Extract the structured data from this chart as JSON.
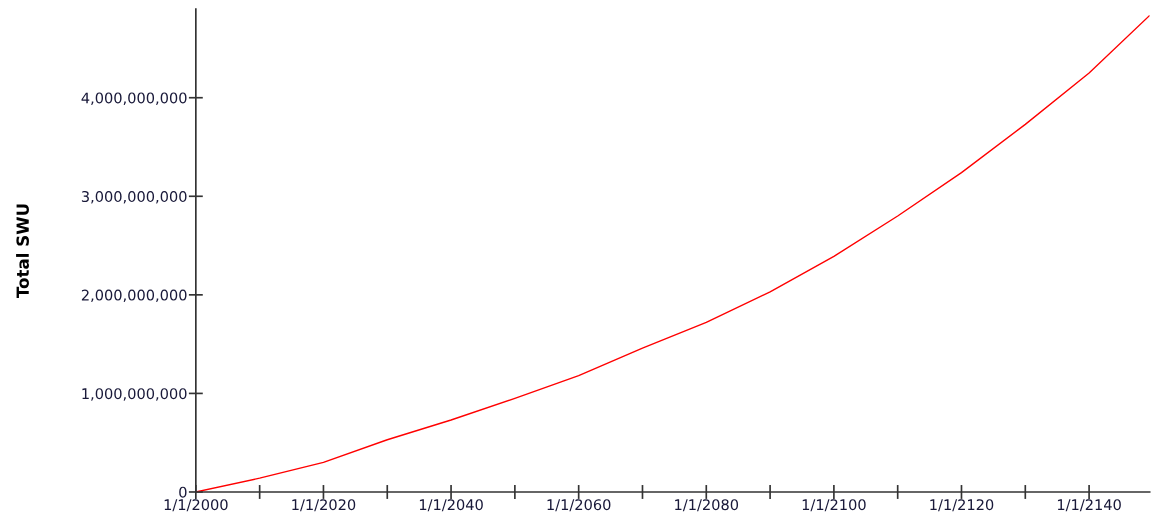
{
  "chart_data": {
    "type": "line",
    "ylabel": "Total SWU",
    "x": [
      "2000-01-01",
      "2010-01-01",
      "2020-01-01",
      "2030-01-01",
      "2040-01-01",
      "2050-01-01",
      "2060-01-01",
      "2070-01-01",
      "2080-01-01",
      "2090-01-01",
      "2100-01-01",
      "2110-01-01",
      "2120-01-01",
      "2130-01-01",
      "2140-01-01",
      "2149-06-01"
    ],
    "series": [
      {
        "color": "#ff0000",
        "values": [
          0,
          140000000,
          300000000,
          530000000,
          730000000,
          950000000,
          1180000000,
          1460000000,
          1720000000,
          2030000000,
          2390000000,
          2800000000,
          3240000000,
          3730000000,
          4250000000,
          4830000000
        ]
      }
    ],
    "xlim": [
      "2000-01-01",
      "2149-07-01"
    ],
    "ylim": [
      0,
      4900000000
    ],
    "xticks": [
      {
        "value": "2000-01-01",
        "label": "1/1/2000"
      },
      {
        "value": "2010-01-01",
        "label": null
      },
      {
        "value": "2020-01-01",
        "label": "1/1/2020"
      },
      {
        "value": "2030-01-01",
        "label": null
      },
      {
        "value": "2040-01-01",
        "label": "1/1/2040"
      },
      {
        "value": "2050-01-01",
        "label": null
      },
      {
        "value": "2060-01-01",
        "label": "1/1/2060"
      },
      {
        "value": "2070-01-01",
        "label": null
      },
      {
        "value": "2080-01-01",
        "label": "1/1/2080"
      },
      {
        "value": "2090-01-01",
        "label": null
      },
      {
        "value": "2100-01-01",
        "label": "1/1/2100"
      },
      {
        "value": "2110-01-01",
        "label": null
      },
      {
        "value": "2120-01-01",
        "label": "1/1/2120"
      },
      {
        "value": "2130-01-01",
        "label": null
      },
      {
        "value": "2140-01-01",
        "label": "1/1/2140"
      }
    ],
    "yticks": [
      {
        "value": 0,
        "label": "0"
      },
      {
        "value": 1000000000,
        "label": "1,000,000,000"
      },
      {
        "value": 2000000000,
        "label": "2,000,000,000"
      },
      {
        "value": 3000000000,
        "label": "3,000,000,000"
      },
      {
        "value": 4000000000,
        "label": "4,000,000,000"
      }
    ],
    "grid": false,
    "marker": "none",
    "line_style": "solid"
  }
}
